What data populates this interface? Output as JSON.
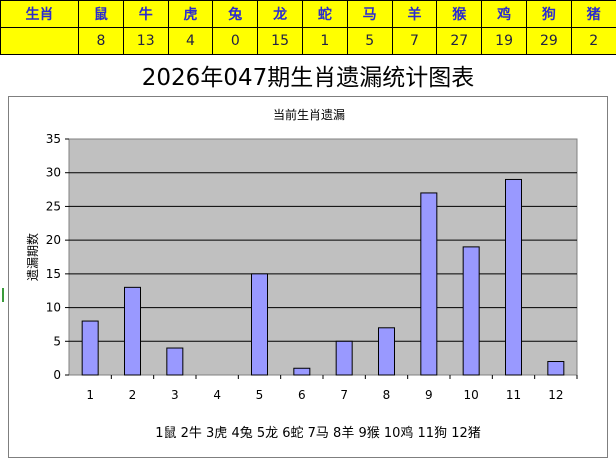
{
  "table": {
    "header_label": "生肖",
    "row2_label": "",
    "animals": [
      "鼠",
      "牛",
      "虎",
      "兔",
      "龙",
      "蛇",
      "马",
      "羊",
      "猴",
      "鸡",
      "狗",
      "猪"
    ],
    "counts": [
      "8",
      "13",
      "4",
      "0",
      "15",
      "1",
      "5",
      "7",
      "27",
      "19",
      "29",
      "2"
    ]
  },
  "page_title": "2026年047期生肖遗漏统计图表",
  "colors": {
    "table_bg": "#ffff00",
    "table_text": "#2b2bd0",
    "plot_bg": "#c0c0c0",
    "bar_fill": "#9999ff",
    "bar_stroke": "#000000"
  },
  "chart_data": {
    "type": "bar",
    "title": "当前生肖遗漏",
    "ylabel": "遗漏期数",
    "xlabel": "1鼠 2牛 3虎 4兔 5龙 6蛇 7马 8羊 9猴 10鸡 11狗 12猪",
    "categories": [
      "1",
      "2",
      "3",
      "4",
      "5",
      "6",
      "7",
      "8",
      "9",
      "10",
      "11",
      "12"
    ],
    "values": [
      8,
      13,
      4,
      0,
      15,
      1,
      5,
      7,
      27,
      19,
      29,
      2
    ],
    "ylim": [
      0,
      35
    ],
    "yticks": [
      "0",
      "5",
      "10",
      "15",
      "20",
      "25",
      "30",
      "35"
    ],
    "grid": true
  }
}
